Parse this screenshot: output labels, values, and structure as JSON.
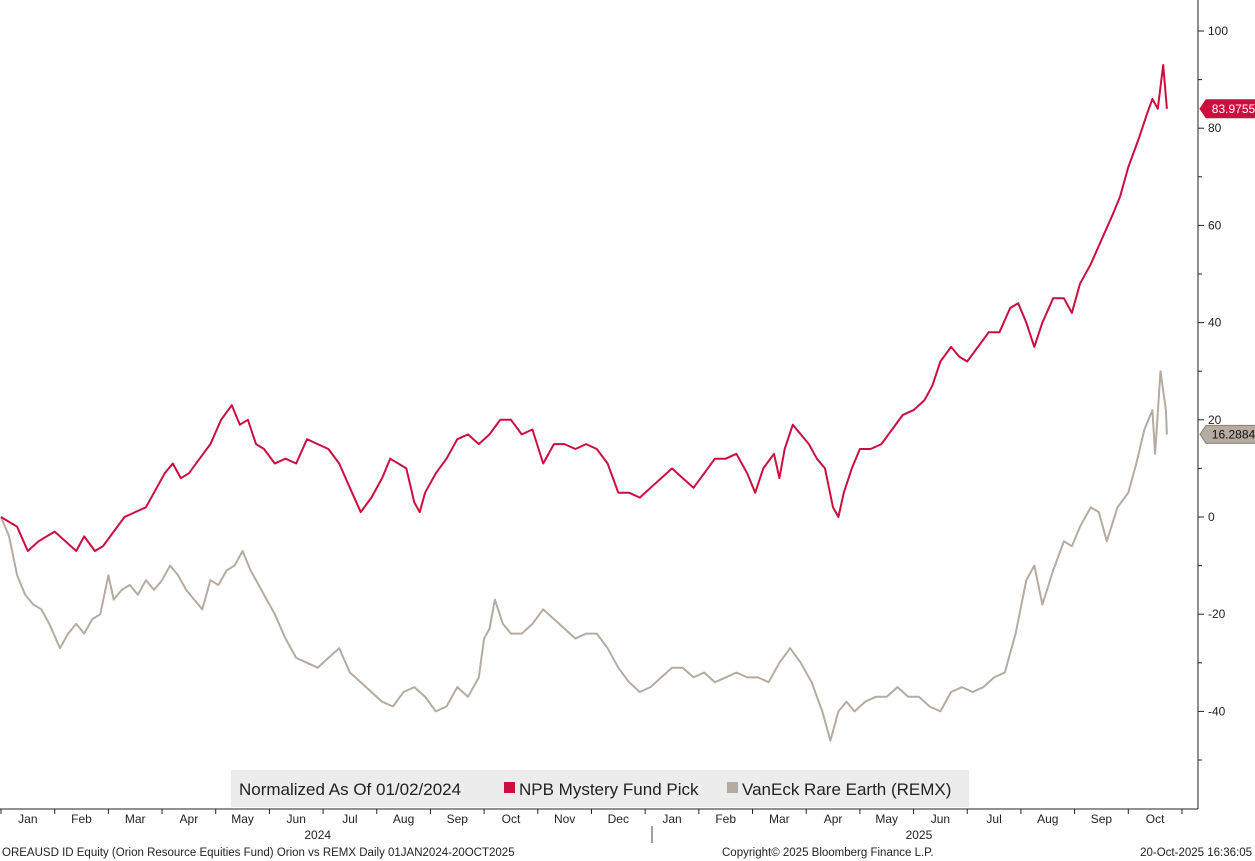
{
  "colors": {
    "npb": "#cc0e3f",
    "remx": "#b5aba0",
    "legend_bg": "#ececec",
    "axis": "#222222"
  },
  "legend": {
    "normalized_note": "Normalized As Of 01/02/2024"
  },
  "footer": {
    "left": "OREAUSD ID Equity (Orion Resource Equities Fund) Orion vs REMX Daily 01JAN2024-20OCT2025",
    "center": "Copyright© 2025 Bloomberg Finance L.P.",
    "right": "20-Oct-2025 16:36:05"
  },
  "chart_data": {
    "type": "line",
    "y_axis": {
      "position": "right",
      "range": [
        -60,
        106
      ],
      "ticks": [
        -40,
        -20,
        0,
        20,
        40,
        60,
        80,
        100
      ]
    },
    "x_axis": {
      "months": [
        "Jan",
        "Feb",
        "Mar",
        "Apr",
        "May",
        "Jun",
        "Jul",
        "Aug",
        "Sep",
        "Oct",
        "Nov",
        "Dec",
        "Jan",
        "Feb",
        "Mar",
        "Apr",
        "May",
        "Jun",
        "Jul",
        "Aug",
        "Sep",
        "Oct"
      ],
      "years": [
        "2024",
        "2025"
      ],
      "range": [
        0,
        21.65
      ]
    },
    "series": [
      {
        "name": "NPB Mystery Fund Pick",
        "color": "#cc0e3f",
        "last_value": "83.9755",
        "points": [
          [
            0,
            0
          ],
          [
            0.15,
            -1
          ],
          [
            0.3,
            -2
          ],
          [
            0.5,
            -7
          ],
          [
            0.7,
            -5
          ],
          [
            0.85,
            -4
          ],
          [
            1.0,
            -3
          ],
          [
            1.2,
            -5
          ],
          [
            1.4,
            -7
          ],
          [
            1.55,
            -4
          ],
          [
            1.75,
            -7
          ],
          [
            1.9,
            -6
          ],
          [
            2.1,
            -3
          ],
          [
            2.3,
            0
          ],
          [
            2.5,
            1
          ],
          [
            2.7,
            2
          ],
          [
            2.9,
            6
          ],
          [
            3.05,
            9
          ],
          [
            3.2,
            11
          ],
          [
            3.35,
            8
          ],
          [
            3.5,
            9
          ],
          [
            3.7,
            12
          ],
          [
            3.9,
            15
          ],
          [
            4.1,
            20
          ],
          [
            4.3,
            23
          ],
          [
            4.45,
            19
          ],
          [
            4.6,
            20
          ],
          [
            4.75,
            15
          ],
          [
            4.9,
            14
          ],
          [
            5.1,
            11
          ],
          [
            5.3,
            12
          ],
          [
            5.5,
            11
          ],
          [
            5.7,
            16
          ],
          [
            5.9,
            15
          ],
          [
            6.1,
            14
          ],
          [
            6.3,
            11
          ],
          [
            6.5,
            6
          ],
          [
            6.7,
            1
          ],
          [
            6.9,
            4
          ],
          [
            7.1,
            8
          ],
          [
            7.25,
            12
          ],
          [
            7.4,
            11
          ],
          [
            7.55,
            10
          ],
          [
            7.7,
            3
          ],
          [
            7.8,
            1
          ],
          [
            7.9,
            5
          ],
          [
            8.1,
            9
          ],
          [
            8.3,
            12
          ],
          [
            8.5,
            16
          ],
          [
            8.7,
            17
          ],
          [
            8.9,
            15
          ],
          [
            9.1,
            17
          ],
          [
            9.3,
            20
          ],
          [
            9.5,
            20
          ],
          [
            9.7,
            17
          ],
          [
            9.9,
            18
          ],
          [
            10.1,
            11
          ],
          [
            10.3,
            15
          ],
          [
            10.5,
            15
          ],
          [
            10.7,
            14
          ],
          [
            10.9,
            15
          ],
          [
            11.1,
            14
          ],
          [
            11.3,
            11
          ],
          [
            11.5,
            5
          ],
          [
            11.7,
            5
          ],
          [
            11.9,
            4
          ],
          [
            12.1,
            6
          ],
          [
            12.3,
            8
          ],
          [
            12.5,
            10
          ],
          [
            12.7,
            8
          ],
          [
            12.9,
            6
          ],
          [
            13.1,
            9
          ],
          [
            13.3,
            12
          ],
          [
            13.5,
            12
          ],
          [
            13.7,
            13
          ],
          [
            13.9,
            9
          ],
          [
            14.05,
            5
          ],
          [
            14.2,
            10
          ],
          [
            14.4,
            13
          ],
          [
            14.5,
            8
          ],
          [
            14.6,
            14
          ],
          [
            14.75,
            19
          ],
          [
            14.9,
            17
          ],
          [
            15.05,
            15
          ],
          [
            15.2,
            12
          ],
          [
            15.35,
            10
          ],
          [
            15.5,
            2
          ],
          [
            15.6,
            0
          ],
          [
            15.7,
            5
          ],
          [
            15.85,
            10
          ],
          [
            16.0,
            14
          ],
          [
            16.2,
            14
          ],
          [
            16.4,
            15
          ],
          [
            16.6,
            18
          ],
          [
            16.8,
            21
          ],
          [
            17.0,
            22
          ],
          [
            17.2,
            24
          ],
          [
            17.35,
            27
          ],
          [
            17.5,
            32
          ],
          [
            17.7,
            35
          ],
          [
            17.85,
            33
          ],
          [
            18.0,
            32
          ],
          [
            18.2,
            35
          ],
          [
            18.4,
            38
          ],
          [
            18.6,
            38
          ],
          [
            18.8,
            43
          ],
          [
            18.95,
            44
          ],
          [
            19.1,
            40
          ],
          [
            19.25,
            35
          ],
          [
            19.4,
            40
          ],
          [
            19.6,
            45
          ],
          [
            19.8,
            45
          ],
          [
            19.95,
            42
          ],
          [
            20.1,
            48
          ],
          [
            20.3,
            52
          ],
          [
            20.5,
            57
          ],
          [
            20.7,
            62
          ],
          [
            20.85,
            66
          ],
          [
            21.0,
            72
          ],
          [
            21.2,
            78
          ],
          [
            21.35,
            83
          ],
          [
            21.45,
            86
          ],
          [
            21.55,
            84
          ],
          [
            21.65,
            93
          ],
          [
            21.72,
            84
          ]
        ]
      },
      {
        "name": "VanEck Rare Earth (REMX)",
        "color": "#b5aba0",
        "last_value": "16.2884",
        "points": [
          [
            0,
            0
          ],
          [
            0.15,
            -4
          ],
          [
            0.3,
            -12
          ],
          [
            0.45,
            -16
          ],
          [
            0.6,
            -18
          ],
          [
            0.75,
            -19
          ],
          [
            0.9,
            -22
          ],
          [
            1.1,
            -27
          ],
          [
            1.25,
            -24
          ],
          [
            1.4,
            -22
          ],
          [
            1.55,
            -24
          ],
          [
            1.7,
            -21
          ],
          [
            1.85,
            -20
          ],
          [
            2.0,
            -12
          ],
          [
            2.1,
            -17
          ],
          [
            2.25,
            -15
          ],
          [
            2.4,
            -14
          ],
          [
            2.55,
            -16
          ],
          [
            2.7,
            -13
          ],
          [
            2.85,
            -15
          ],
          [
            3.0,
            -13
          ],
          [
            3.15,
            -10
          ],
          [
            3.3,
            -12
          ],
          [
            3.45,
            -15
          ],
          [
            3.6,
            -17
          ],
          [
            3.75,
            -19
          ],
          [
            3.9,
            -13
          ],
          [
            4.05,
            -14
          ],
          [
            4.2,
            -11
          ],
          [
            4.35,
            -10
          ],
          [
            4.5,
            -7
          ],
          [
            4.65,
            -11
          ],
          [
            4.8,
            -14
          ],
          [
            4.95,
            -17
          ],
          [
            5.1,
            -20
          ],
          [
            5.3,
            -25
          ],
          [
            5.5,
            -29
          ],
          [
            5.7,
            -30
          ],
          [
            5.9,
            -31
          ],
          [
            6.1,
            -29
          ],
          [
            6.3,
            -27
          ],
          [
            6.5,
            -32
          ],
          [
            6.7,
            -34
          ],
          [
            6.9,
            -36
          ],
          [
            7.1,
            -38
          ],
          [
            7.3,
            -39
          ],
          [
            7.5,
            -36
          ],
          [
            7.7,
            -35
          ],
          [
            7.9,
            -37
          ],
          [
            8.1,
            -40
          ],
          [
            8.3,
            -39
          ],
          [
            8.5,
            -35
          ],
          [
            8.7,
            -37
          ],
          [
            8.9,
            -33
          ],
          [
            9.0,
            -25
          ],
          [
            9.1,
            -23
          ],
          [
            9.2,
            -17
          ],
          [
            9.35,
            -22
          ],
          [
            9.5,
            -24
          ],
          [
            9.7,
            -24
          ],
          [
            9.9,
            -22
          ],
          [
            10.1,
            -19
          ],
          [
            10.3,
            -21
          ],
          [
            10.5,
            -23
          ],
          [
            10.7,
            -25
          ],
          [
            10.9,
            -24
          ],
          [
            11.1,
            -24
          ],
          [
            11.3,
            -27
          ],
          [
            11.5,
            -31
          ],
          [
            11.7,
            -34
          ],
          [
            11.9,
            -36
          ],
          [
            12.1,
            -35
          ],
          [
            12.3,
            -33
          ],
          [
            12.5,
            -31
          ],
          [
            12.7,
            -31
          ],
          [
            12.9,
            -33
          ],
          [
            13.1,
            -32
          ],
          [
            13.3,
            -34
          ],
          [
            13.5,
            -33
          ],
          [
            13.7,
            -32
          ],
          [
            13.9,
            -33
          ],
          [
            14.1,
            -33
          ],
          [
            14.3,
            -34
          ],
          [
            14.5,
            -30
          ],
          [
            14.7,
            -27
          ],
          [
            14.9,
            -30
          ],
          [
            15.1,
            -34
          ],
          [
            15.3,
            -40
          ],
          [
            15.45,
            -46
          ],
          [
            15.6,
            -40
          ],
          [
            15.75,
            -38
          ],
          [
            15.9,
            -40
          ],
          [
            16.1,
            -38
          ],
          [
            16.3,
            -37
          ],
          [
            16.5,
            -37
          ],
          [
            16.7,
            -35
          ],
          [
            16.9,
            -37
          ],
          [
            17.1,
            -37
          ],
          [
            17.3,
            -39
          ],
          [
            17.5,
            -40
          ],
          [
            17.7,
            -36
          ],
          [
            17.9,
            -35
          ],
          [
            18.1,
            -36
          ],
          [
            18.3,
            -35
          ],
          [
            18.5,
            -33
          ],
          [
            18.7,
            -32
          ],
          [
            18.9,
            -24
          ],
          [
            19.1,
            -13
          ],
          [
            19.25,
            -10
          ],
          [
            19.4,
            -18
          ],
          [
            19.6,
            -11
          ],
          [
            19.8,
            -5
          ],
          [
            19.95,
            -6
          ],
          [
            20.1,
            -2
          ],
          [
            20.3,
            2
          ],
          [
            20.45,
            1
          ],
          [
            20.6,
            -5
          ],
          [
            20.8,
            2
          ],
          [
            21.0,
            5
          ],
          [
            21.15,
            11
          ],
          [
            21.3,
            18
          ],
          [
            21.45,
            22
          ],
          [
            21.5,
            13
          ],
          [
            21.6,
            30
          ],
          [
            21.7,
            22
          ],
          [
            21.72,
            17
          ]
        ]
      }
    ]
  }
}
